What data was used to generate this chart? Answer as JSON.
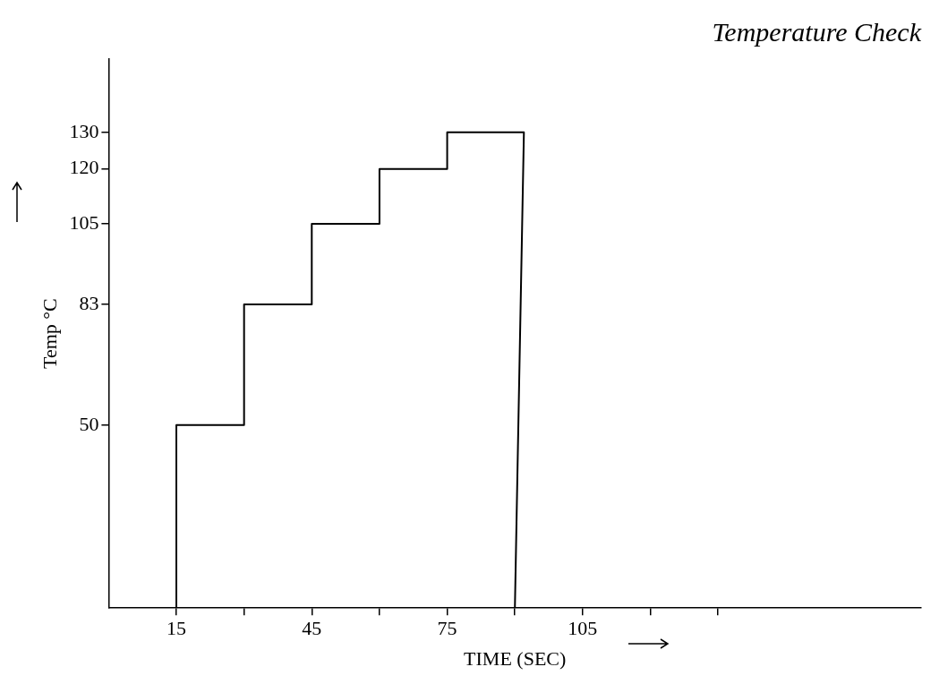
{
  "chart_data": {
    "type": "line",
    "title": "Temperature Check",
    "xlabel": "TIME (SEC)",
    "ylabel": "Temp °C",
    "x": [
      15,
      15,
      30,
      30,
      45,
      45,
      60,
      60,
      75,
      75,
      92,
      90
    ],
    "series": [
      {
        "color": "#000000",
        "values": [
          0,
          50,
          50,
          83,
          83,
          105,
          105,
          120,
          120,
          130,
          130,
          0
        ]
      }
    ],
    "xlim": [
      0,
      180
    ],
    "xticks": [
      15,
      {
        "value": 30,
        "label": null
      },
      45,
      {
        "value": 60,
        "label": null
      },
      75,
      {
        "value": 90,
        "label": null
      },
      105,
      {
        "value": 120,
        "label": null
      },
      {
        "value": 135,
        "label": null
      }
    ],
    "ylim": [
      0,
      150
    ],
    "yticks": [
      50,
      83,
      105,
      120,
      130
    ],
    "grid": false,
    "legend": false,
    "marker": "none",
    "line_style": "solid"
  }
}
